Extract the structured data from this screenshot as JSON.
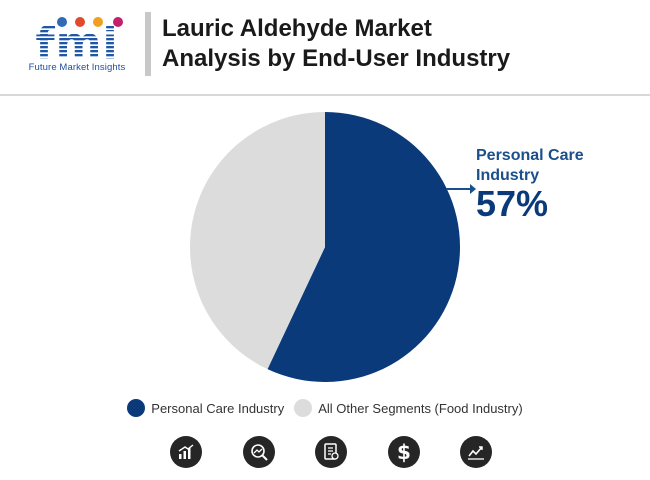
{
  "brand": {
    "logo_text": "fmi",
    "tagline": "Future Market Insights"
  },
  "header": {
    "title_line1": "Lauric Aldehyde Market",
    "title_line2": "Analysis by End-User Industry"
  },
  "chart_data": {
    "type": "pie",
    "title": "Lauric Aldehyde Market Analysis by End-User Industry",
    "categories": [
      "Personal Care Industry",
      "All Other Segments (Food Industry)"
    ],
    "values": [
      57,
      43
    ],
    "colors": [
      "#0b3a7a",
      "#dcdcdc"
    ],
    "legend_position": "bottom",
    "annotation": {
      "label": "Personal Care Industry",
      "value_text": "57%"
    }
  },
  "callout": {
    "label_line1": "Personal Care",
    "label_line2": "Industry",
    "value": "57%"
  },
  "legend": {
    "items": [
      {
        "label": "Personal Care Industry",
        "color": "#0b3a7a"
      },
      {
        "label": "All Other Segments (Food Industry)",
        "color": "#dcdcdc"
      }
    ]
  },
  "footer_icons": [
    "bar-chart-icon",
    "magnifier-chart-icon",
    "report-document-icon",
    "dollar-icon",
    "trend-line-icon"
  ]
}
